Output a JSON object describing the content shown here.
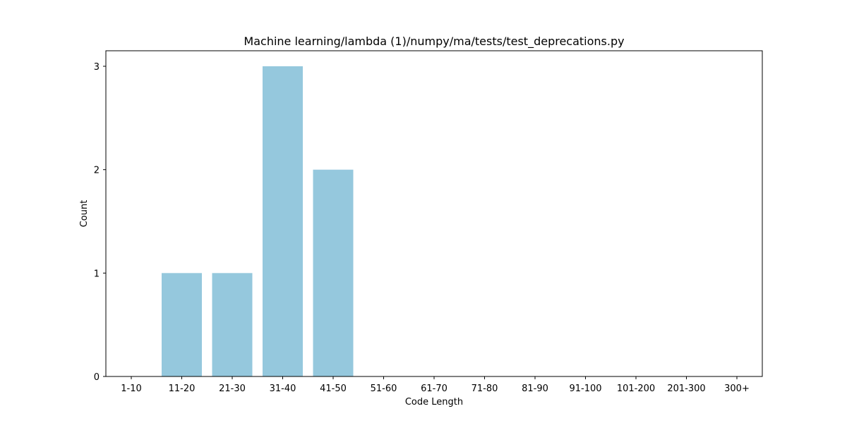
{
  "chart_data": {
    "type": "bar",
    "title": "Machine learning/lambda (1)/numpy/ma/tests/test_deprecations.py",
    "xlabel": "Code Length",
    "ylabel": "Count",
    "categories": [
      "1-10",
      "11-20",
      "21-30",
      "31-40",
      "41-50",
      "51-60",
      "61-70",
      "71-80",
      "81-90",
      "91-100",
      "101-200",
      "201-300",
      "300+"
    ],
    "values": [
      0,
      1,
      1,
      3,
      2,
      0,
      0,
      0,
      0,
      0,
      0,
      0,
      0
    ],
    "yticks": [
      "0",
      "1",
      "2",
      "3"
    ],
    "ylim": [
      0,
      3.15
    ],
    "grid": false,
    "bar_color": "#95c8dd"
  }
}
